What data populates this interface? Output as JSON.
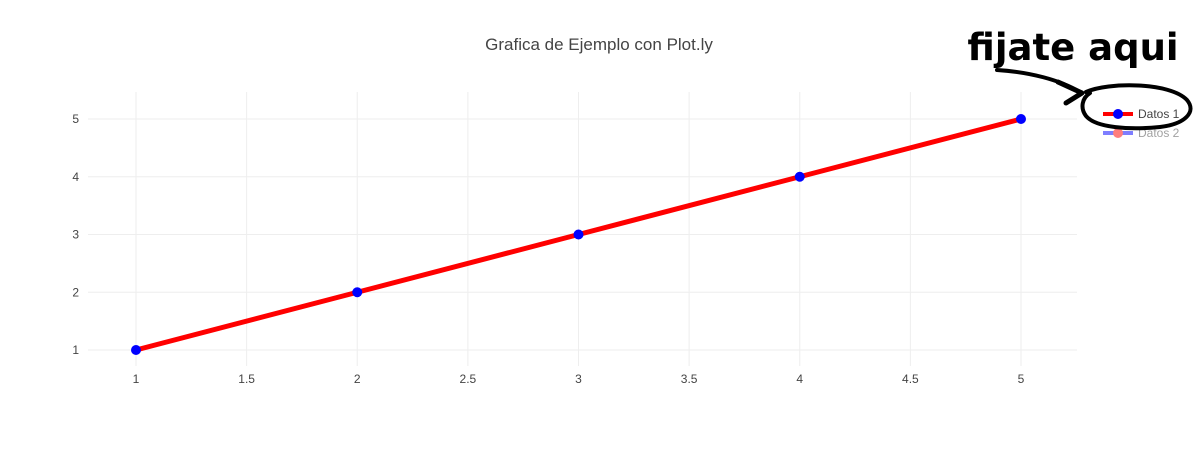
{
  "chart_data": {
    "type": "line",
    "title": "Grafica de Ejemplo con Plot.ly",
    "xlabel": "",
    "ylabel": "",
    "xlim": [
      1,
      5
    ],
    "ylim": [
      1,
      5
    ],
    "x_ticks": [
      "1",
      "1.5",
      "2",
      "2.5",
      "3",
      "3.5",
      "4",
      "4.5",
      "5"
    ],
    "y_ticks": [
      "1",
      "2",
      "3",
      "4",
      "5"
    ],
    "grid": true,
    "legend_position": "top-right",
    "series": [
      {
        "name": "Datos 1",
        "x": [
          1,
          2,
          3,
          4,
          5
        ],
        "y": [
          1,
          2,
          3,
          4,
          5
        ],
        "line_color": "#ff0000",
        "marker_color": "#0000ff",
        "visible": true
      },
      {
        "name": "Datos 2",
        "line_color": "#0000ff",
        "marker_color": "#ff0000",
        "visible": false
      }
    ]
  },
  "annotation": {
    "text": "fijate aqui",
    "color": "#000000"
  }
}
